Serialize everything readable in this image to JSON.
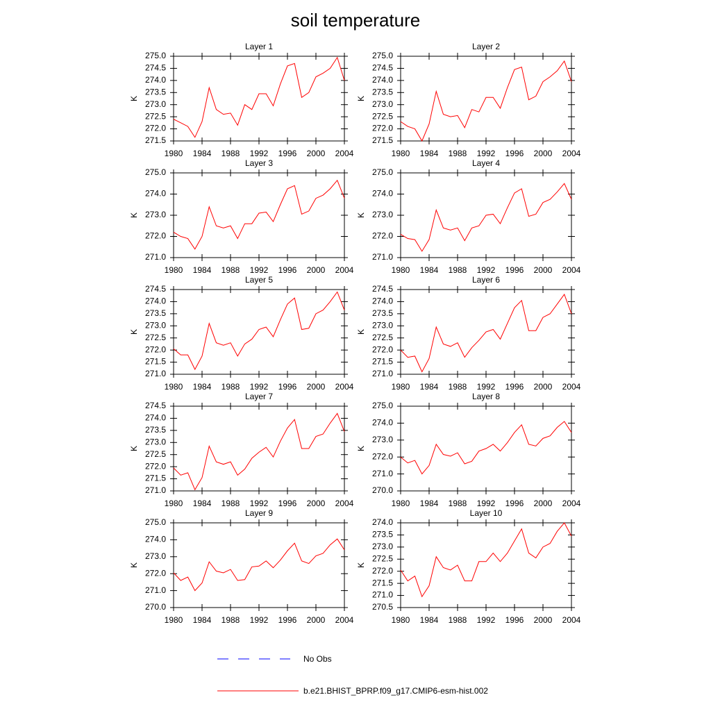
{
  "title": "soil temperature",
  "legend": [
    {
      "name": "No Obs",
      "color": "#0000ff"
    },
    {
      "name": "b.e21.BHIST_BPRP.f09_g17.CMIP6-esm-hist.002",
      "color": "#ff0000"
    }
  ],
  "chart_data": [
    {
      "type": "line",
      "title": "Layer 1",
      "y_label": "K",
      "color": "#ff0000",
      "x": [
        1980,
        1981,
        1982,
        1983,
        1984,
        1985,
        1986,
        1987,
        1988,
        1989,
        1990,
        1991,
        1992,
        1993,
        1994,
        1995,
        1996,
        1997,
        1998,
        1999,
        2000,
        2001,
        2002,
        2003,
        2004
      ],
      "values": [
        272.4,
        272.25,
        272.1,
        271.65,
        272.3,
        273.7,
        272.8,
        272.6,
        272.65,
        272.15,
        273.0,
        272.8,
        273.45,
        273.45,
        272.95,
        273.85,
        274.6,
        274.7,
        273.3,
        273.5,
        274.15,
        274.3,
        274.5,
        274.95,
        274.0
      ],
      "xlim": [
        1980,
        2004
      ],
      "xticks": [
        1980,
        1984,
        1988,
        1992,
        1996,
        2000,
        2004
      ],
      "ylim": [
        271.5,
        275
      ],
      "yticks": [
        {
          "value": 271.5,
          "label": "271.5"
        },
        {
          "value": 272,
          "label": "272.0"
        },
        {
          "value": 272.5,
          "label": "272.5"
        },
        {
          "value": 273,
          "label": "273.0"
        },
        {
          "value": 273.5,
          "label": "273.5"
        },
        {
          "value": 274,
          "label": "274.0"
        },
        {
          "value": 274.5,
          "label": "274.5"
        },
        {
          "value": 275,
          "label": "275.0"
        }
      ]
    },
    {
      "type": "line",
      "title": "Layer 2",
      "y_label": "K",
      "color": "#ff0000",
      "x": [
        1980,
        1981,
        1982,
        1983,
        1984,
        1985,
        1986,
        1987,
        1988,
        1989,
        1990,
        1991,
        1992,
        1993,
        1994,
        1995,
        1996,
        1997,
        1998,
        1999,
        2000,
        2001,
        2002,
        2003,
        2004
      ],
      "values": [
        272.3,
        272.1,
        272.0,
        271.5,
        272.2,
        273.55,
        272.6,
        272.5,
        272.55,
        272.05,
        272.8,
        272.7,
        273.3,
        273.3,
        272.85,
        273.7,
        274.45,
        274.55,
        273.2,
        273.35,
        273.95,
        274.15,
        274.4,
        274.8,
        273.95
      ],
      "xlim": [
        1980,
        2004
      ],
      "xticks": [
        1980,
        1984,
        1988,
        1992,
        1996,
        2000,
        2004
      ],
      "ylim": [
        271.5,
        275
      ],
      "yticks": [
        {
          "value": 271.5,
          "label": "271.5"
        },
        {
          "value": 272,
          "label": "272.0"
        },
        {
          "value": 272.5,
          "label": "272.5"
        },
        {
          "value": 273,
          "label": "273.0"
        },
        {
          "value": 273.5,
          "label": "273.5"
        },
        {
          "value": 274,
          "label": "274.0"
        },
        {
          "value": 274.5,
          "label": "274.5"
        },
        {
          "value": 275,
          "label": "275.0"
        }
      ]
    },
    {
      "type": "line",
      "title": "Layer 3",
      "y_label": "K",
      "color": "#ff0000",
      "x": [
        1980,
        1981,
        1982,
        1983,
        1984,
        1985,
        1986,
        1987,
        1988,
        1989,
        1990,
        1991,
        1992,
        1993,
        1994,
        1995,
        1996,
        1997,
        1998,
        1999,
        2000,
        2001,
        2002,
        2003,
        2004
      ],
      "values": [
        272.2,
        272.0,
        271.9,
        271.4,
        272.0,
        273.4,
        272.5,
        272.4,
        272.5,
        271.9,
        272.6,
        272.6,
        273.1,
        273.15,
        272.7,
        273.5,
        274.25,
        274.4,
        273.05,
        273.2,
        273.8,
        273.95,
        274.25,
        274.65,
        273.8
      ],
      "xlim": [
        1980,
        2004
      ],
      "xticks": [
        1980,
        1984,
        1988,
        1992,
        1996,
        2000,
        2004
      ],
      "ylim": [
        271,
        275
      ],
      "yticks": [
        {
          "value": 271,
          "label": "271.0"
        },
        {
          "value": 272,
          "label": "272.0"
        },
        {
          "value": 273,
          "label": "273.0"
        },
        {
          "value": 274,
          "label": "274.0"
        },
        {
          "value": 275,
          "label": "275.0"
        }
      ]
    },
    {
      "type": "line",
      "title": "Layer 4",
      "y_label": "K",
      "color": "#ff0000",
      "x": [
        1980,
        1981,
        1982,
        1983,
        1984,
        1985,
        1986,
        1987,
        1988,
        1989,
        1990,
        1991,
        1992,
        1993,
        1994,
        1995,
        1996,
        1997,
        1998,
        1999,
        2000,
        2001,
        2002,
        2003,
        2004
      ],
      "values": [
        272.1,
        271.9,
        271.85,
        271.3,
        271.85,
        273.25,
        272.4,
        272.3,
        272.4,
        271.8,
        272.4,
        272.5,
        273.0,
        273.05,
        272.6,
        273.35,
        274.05,
        274.25,
        272.95,
        273.05,
        273.6,
        273.75,
        274.1,
        274.5,
        273.75
      ],
      "xlim": [
        1980,
        2004
      ],
      "xticks": [
        1980,
        1984,
        1988,
        1992,
        1996,
        2000,
        2004
      ],
      "ylim": [
        271,
        275
      ],
      "yticks": [
        {
          "value": 271,
          "label": "271.0"
        },
        {
          "value": 272,
          "label": "272.0"
        },
        {
          "value": 273,
          "label": "273.0"
        },
        {
          "value": 274,
          "label": "274.0"
        },
        {
          "value": 275,
          "label": "275.0"
        }
      ]
    },
    {
      "type": "line",
      "title": "Layer 5",
      "y_label": "K",
      "color": "#ff0000",
      "x": [
        1980,
        1981,
        1982,
        1983,
        1984,
        1985,
        1986,
        1987,
        1988,
        1989,
        1990,
        1991,
        1992,
        1993,
        1994,
        1995,
        1996,
        1997,
        1998,
        1999,
        2000,
        2001,
        2002,
        2003,
        2004
      ],
      "values": [
        272.05,
        271.8,
        271.8,
        271.2,
        271.75,
        273.1,
        272.3,
        272.2,
        272.3,
        271.75,
        272.25,
        272.45,
        272.85,
        272.95,
        272.55,
        273.25,
        273.9,
        274.15,
        272.85,
        272.9,
        273.5,
        273.65,
        274.0,
        274.4,
        273.65
      ],
      "xlim": [
        1980,
        2004
      ],
      "xticks": [
        1980,
        1984,
        1988,
        1992,
        1996,
        2000,
        2004
      ],
      "ylim": [
        271,
        274.5
      ],
      "yticks": [
        {
          "value": 271,
          "label": "271.0"
        },
        {
          "value": 271.5,
          "label": "271.5"
        },
        {
          "value": 272,
          "label": "272.0"
        },
        {
          "value": 272.5,
          "label": "272.5"
        },
        {
          "value": 273,
          "label": "273.0"
        },
        {
          "value": 273.5,
          "label": "273.5"
        },
        {
          "value": 274,
          "label": "274.0"
        },
        {
          "value": 274.5,
          "label": "274.5"
        }
      ]
    },
    {
      "type": "line",
      "title": "Layer 6",
      "y_label": "K",
      "color": "#ff0000",
      "x": [
        1980,
        1981,
        1982,
        1983,
        1984,
        1985,
        1986,
        1987,
        1988,
        1989,
        1990,
        1991,
        1992,
        1993,
        1994,
        1995,
        1996,
        1997,
        1998,
        1999,
        2000,
        2001,
        2002,
        2003,
        2004
      ],
      "values": [
        272.0,
        271.7,
        271.75,
        271.1,
        271.65,
        272.95,
        272.25,
        272.15,
        272.3,
        271.7,
        272.1,
        272.4,
        272.75,
        272.85,
        272.45,
        273.1,
        273.75,
        274.05,
        272.8,
        272.8,
        273.35,
        273.5,
        273.9,
        274.3,
        273.5
      ],
      "xlim": [
        1980,
        2004
      ],
      "xticks": [
        1980,
        1984,
        1988,
        1992,
        1996,
        2000,
        2004
      ],
      "ylim": [
        271,
        274.5
      ],
      "yticks": [
        {
          "value": 271,
          "label": "271.0"
        },
        {
          "value": 271.5,
          "label": "271.5"
        },
        {
          "value": 272,
          "label": "272.0"
        },
        {
          "value": 272.5,
          "label": "272.5"
        },
        {
          "value": 273,
          "label": "273.0"
        },
        {
          "value": 273.5,
          "label": "273.5"
        },
        {
          "value": 274,
          "label": "274.0"
        },
        {
          "value": 274.5,
          "label": "274.5"
        }
      ]
    },
    {
      "type": "line",
      "title": "Layer 7",
      "y_label": "K",
      "color": "#ff0000",
      "x": [
        1980,
        1981,
        1982,
        1983,
        1984,
        1985,
        1986,
        1987,
        1988,
        1989,
        1990,
        1991,
        1992,
        1993,
        1994,
        1995,
        1996,
        1997,
        1998,
        1999,
        2000,
        2001,
        2002,
        2003,
        2004
      ],
      "values": [
        271.95,
        271.65,
        271.75,
        271.05,
        271.55,
        272.85,
        272.2,
        272.1,
        272.2,
        271.65,
        271.9,
        272.35,
        272.6,
        272.8,
        272.4,
        273.05,
        273.6,
        273.95,
        272.75,
        272.75,
        273.25,
        273.35,
        273.8,
        274.2,
        273.45
      ],
      "xlim": [
        1980,
        2004
      ],
      "xticks": [
        1980,
        1984,
        1988,
        1992,
        1996,
        2000,
        2004
      ],
      "ylim": [
        271,
        274.5
      ],
      "yticks": [
        {
          "value": 271,
          "label": "271.0"
        },
        {
          "value": 271.5,
          "label": "271.5"
        },
        {
          "value": 272,
          "label": "272.0"
        },
        {
          "value": 272.5,
          "label": "272.5"
        },
        {
          "value": 273,
          "label": "273.0"
        },
        {
          "value": 273.5,
          "label": "273.5"
        },
        {
          "value": 274,
          "label": "274.0"
        },
        {
          "value": 274.5,
          "label": "274.5"
        }
      ]
    },
    {
      "type": "line",
      "title": "Layer 8",
      "y_label": "K",
      "color": "#ff0000",
      "x": [
        1980,
        1981,
        1982,
        1983,
        1984,
        1985,
        1986,
        1987,
        1988,
        1989,
        1990,
        1991,
        1992,
        1993,
        1994,
        1995,
        1996,
        1997,
        1998,
        1999,
        2000,
        2001,
        2002,
        2003,
        2004
      ],
      "values": [
        272.0,
        271.65,
        271.8,
        271.0,
        271.5,
        272.75,
        272.15,
        272.05,
        272.25,
        271.6,
        271.75,
        272.35,
        272.5,
        272.75,
        272.35,
        272.85,
        273.45,
        273.9,
        272.75,
        272.65,
        273.1,
        273.25,
        273.75,
        274.1,
        273.45
      ],
      "xlim": [
        1980,
        2004
      ],
      "xticks": [
        1980,
        1984,
        1988,
        1992,
        1996,
        2000,
        2004
      ],
      "ylim": [
        270,
        275
      ],
      "yticks": [
        {
          "value": 270,
          "label": "270.0"
        },
        {
          "value": 271,
          "label": "271.0"
        },
        {
          "value": 272,
          "label": "272.0"
        },
        {
          "value": 273,
          "label": "273.0"
        },
        {
          "value": 274,
          "label": "274.0"
        },
        {
          "value": 275,
          "label": "275.0"
        }
      ]
    },
    {
      "type": "line",
      "title": "Layer 9",
      "y_label": "K",
      "color": "#ff0000",
      "x": [
        1980,
        1981,
        1982,
        1983,
        1984,
        1985,
        1986,
        1987,
        1988,
        1989,
        1990,
        1991,
        1992,
        1993,
        1994,
        1995,
        1996,
        1997,
        1998,
        1999,
        2000,
        2001,
        2002,
        2003,
        2004
      ],
      "values": [
        272.05,
        271.6,
        271.8,
        271.0,
        271.45,
        272.7,
        272.15,
        272.05,
        272.25,
        271.6,
        271.65,
        272.4,
        272.45,
        272.75,
        272.35,
        272.8,
        273.35,
        273.8,
        272.75,
        272.6,
        273.05,
        273.2,
        273.7,
        274.05,
        273.4
      ],
      "xlim": [
        1980,
        2004
      ],
      "xticks": [
        1980,
        1984,
        1988,
        1992,
        1996,
        2000,
        2004
      ],
      "ylim": [
        270,
        275
      ],
      "yticks": [
        {
          "value": 270,
          "label": "270.0"
        },
        {
          "value": 271,
          "label": "271.0"
        },
        {
          "value": 272,
          "label": "272.0"
        },
        {
          "value": 273,
          "label": "273.0"
        },
        {
          "value": 274,
          "label": "274.0"
        },
        {
          "value": 275,
          "label": "275.0"
        }
      ]
    },
    {
      "type": "line",
      "title": "Layer 10",
      "y_label": "K",
      "color": "#ff0000",
      "x": [
        1980,
        1981,
        1982,
        1983,
        1984,
        1985,
        1986,
        1987,
        1988,
        1989,
        1990,
        1991,
        1992,
        1993,
        1994,
        1995,
        1996,
        1997,
        1998,
        1999,
        2000,
        2001,
        2002,
        2003,
        2004
      ],
      "values": [
        272.05,
        271.6,
        271.8,
        270.95,
        271.4,
        272.6,
        272.15,
        272.05,
        272.25,
        271.6,
        271.6,
        272.4,
        272.4,
        272.75,
        272.4,
        272.75,
        273.25,
        273.75,
        272.75,
        272.55,
        273.0,
        273.15,
        273.65,
        274.0,
        273.45
      ],
      "xlim": [
        1980,
        2004
      ],
      "xticks": [
        1980,
        1984,
        1988,
        1992,
        1996,
        2000,
        2004
      ],
      "ylim": [
        270.5,
        274
      ],
      "yticks": [
        {
          "value": 270.5,
          "label": "270.5"
        },
        {
          "value": 271,
          "label": "271.0"
        },
        {
          "value": 271.5,
          "label": "271.5"
        },
        {
          "value": 272,
          "label": "272.0"
        },
        {
          "value": 272.5,
          "label": "272.5"
        },
        {
          "value": 273,
          "label": "273.0"
        },
        {
          "value": 273.5,
          "label": "273.5"
        },
        {
          "value": 274,
          "label": "274.0"
        }
      ]
    }
  ]
}
